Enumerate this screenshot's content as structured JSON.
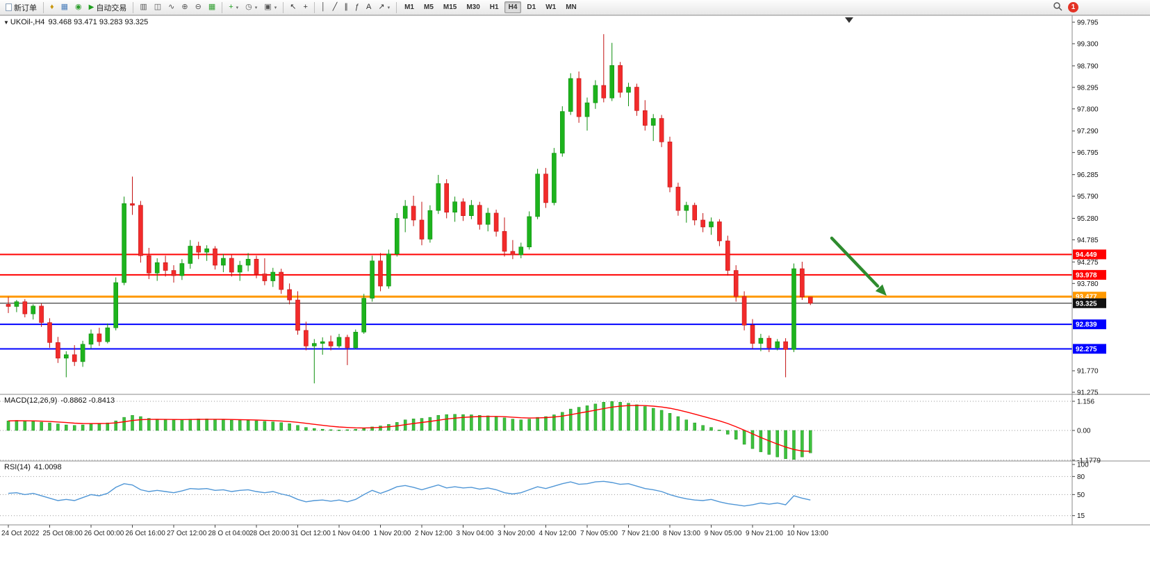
{
  "toolbar": {
    "new_order_label": "新订单",
    "auto_trading_label": "自动交易",
    "dropdown_glyph": "▾",
    "notification_count": "1",
    "timeframes": [
      "M1",
      "M5",
      "M15",
      "M30",
      "H1",
      "H4",
      "D1",
      "W1",
      "MN"
    ],
    "active_timeframe": "H4",
    "groups": {
      "profiles": [
        {
          "name": "market-watch-icon",
          "glyph": "♦",
          "color": "#c8960c"
        },
        {
          "name": "data-window-icon",
          "glyph": "▦",
          "color": "#4a7ebb"
        },
        {
          "name": "navigator-icon",
          "glyph": "◉",
          "color": "#2f9e2f"
        }
      ],
      "chart_types": [
        {
          "name": "bar-chart-icon",
          "glyph": "▥",
          "color": "#555555"
        },
        {
          "name": "candlestick-chart-icon",
          "glyph": "◫",
          "color": "#555555"
        },
        {
          "name": "line-chart-icon",
          "glyph": "∿",
          "color": "#555555"
        }
      ],
      "zoom": [
        {
          "name": "zoom-in-icon",
          "glyph": "⊕",
          "color": "#555555"
        },
        {
          "name": "zoom-out-icon",
          "glyph": "⊖",
          "color": "#555555"
        },
        {
          "name": "tile-windows-icon",
          "glyph": "▦",
          "color": "#2f9e2f"
        }
      ],
      "insert": [
        {
          "name": "indicators-icon",
          "glyph": "+",
          "color": "#1e9e1e",
          "dropdown": true
        },
        {
          "name": "periods-icon",
          "glyph": "◷",
          "color": "#555555",
          "dropdown": true
        },
        {
          "name": "templates-icon",
          "glyph": "▣",
          "color": "#555555",
          "dropdown": true
        }
      ],
      "cursor": [
        {
          "name": "cursor-icon",
          "glyph": "↖",
          "color": "#333333"
        },
        {
          "name": "crosshair-icon",
          "glyph": "+",
          "color": "#333333"
        }
      ],
      "draw": [
        {
          "name": "vertical-line-icon",
          "glyph": "│",
          "color": "#333333"
        },
        {
          "name": "trendline-icon",
          "glyph": "╱",
          "color": "#333333"
        },
        {
          "name": "channel-icon",
          "glyph": "∥",
          "color": "#333333"
        },
        {
          "name": "fibonacci-icon",
          "glyph": "ƒ",
          "color": "#333333"
        },
        {
          "name": "text-icon",
          "glyph": "A",
          "color": "#333333"
        },
        {
          "name": "arrows-icon",
          "glyph": "↗",
          "color": "#333333",
          "dropdown": true
        }
      ]
    }
  },
  "chart": {
    "symbol_title": "UKOil-,H4",
    "ohlc_text": "93.468 93.471 93.283 93.325"
  },
  "chart_data": {
    "type": "candlestick+indicators",
    "symbol": "UKOil-",
    "timeframe": "H4",
    "colors": {
      "bull": "#1db31d",
      "bull_dark": "#0e8f0e",
      "bear": "#f22b2b",
      "bear_dark": "#c31111",
      "macd_hist": "#3ec13e",
      "macd_hist_dark": "#1f8f1f",
      "macd_signal": "#ff0000",
      "rsi_line": "#4f96d6",
      "arrow": "#2e8b2e",
      "line_red": "#ff0000",
      "line_orange": "#ff9900",
      "line_blue": "#0000ff",
      "line_black": "#111111"
    },
    "price_axis": {
      "min": 91.275,
      "max": 99.795,
      "ticks": [
        "99.795",
        "99.300",
        "98.790",
        "98.295",
        "97.800",
        "97.290",
        "96.795",
        "96.285",
        "95.790",
        "95.280",
        "94.785",
        "94.275",
        "93.780",
        "91.770",
        "91.275"
      ]
    },
    "hlines": [
      {
        "price": 94.449,
        "label": "94.449",
        "color": "#ff0000",
        "width": 2
      },
      {
        "price": 93.978,
        "label": "93.978",
        "color": "#ff0000",
        "width": 2
      },
      {
        "price": 93.477,
        "label": "93.477",
        "color": "#ff9900",
        "width": 3
      },
      {
        "price": 93.325,
        "label": "93.325",
        "color": "#111111",
        "width": 1
      },
      {
        "price": 92.839,
        "label": "92.839",
        "color": "#0000ff",
        "width": 2
      },
      {
        "price": 92.275,
        "label": "92.275",
        "color": "#0000ff",
        "width": 2
      }
    ],
    "time_labels": [
      "24 Oct 2022",
      "25 Oct 08:00",
      "26 Oct 00:00",
      "26 Oct 16:00",
      "27 Oct 12:00",
      "28 O ct 04:00",
      "28 Oct 20:00",
      "31 Oct 12:00",
      "1 Nov 04:00",
      "1 Nov 20:00",
      "2 Nov 12:00",
      "3 Nov 04:00",
      "3 Nov 20:00",
      "4 Nov 12:00",
      "7 Nov 05:00",
      "7 Nov 21:00",
      "8 Nov 13:00",
      "9 Nov 05:00",
      "9 Nov 21:00",
      "10 Nov 13:00"
    ],
    "ohlc": [
      [
        93.3,
        93.47,
        93.1,
        93.25
      ],
      [
        93.25,
        93.4,
        93.12,
        93.36
      ],
      [
        93.36,
        93.42,
        93.0,
        93.08
      ],
      [
        93.08,
        93.3,
        92.95,
        93.26
      ],
      [
        93.26,
        93.32,
        92.78,
        92.88
      ],
      [
        92.88,
        92.98,
        92.3,
        92.42
      ],
      [
        92.42,
        92.55,
        91.95,
        92.06
      ],
      [
        92.06,
        92.22,
        91.62,
        92.14
      ],
      [
        92.14,
        92.36,
        91.88,
        91.98
      ],
      [
        91.98,
        92.46,
        91.86,
        92.38
      ],
      [
        92.38,
        92.72,
        92.28,
        92.62
      ],
      [
        92.62,
        92.76,
        92.34,
        92.44
      ],
      [
        92.44,
        92.86,
        92.4,
        92.76
      ],
      [
        92.76,
        93.92,
        92.7,
        93.8
      ],
      [
        93.8,
        95.78,
        93.74,
        95.62
      ],
      [
        95.62,
        96.24,
        95.36,
        95.58
      ],
      [
        95.58,
        95.68,
        94.26,
        94.42
      ],
      [
        94.42,
        94.6,
        93.88,
        94.02
      ],
      [
        94.02,
        94.36,
        93.84,
        94.26
      ],
      [
        94.26,
        94.42,
        93.94,
        94.08
      ],
      [
        94.08,
        94.2,
        93.8,
        93.96
      ],
      [
        93.96,
        94.34,
        93.86,
        94.24
      ],
      [
        94.24,
        94.78,
        94.12,
        94.64
      ],
      [
        94.64,
        94.74,
        94.34,
        94.5
      ],
      [
        94.5,
        94.66,
        94.3,
        94.58
      ],
      [
        94.58,
        94.64,
        94.1,
        94.2
      ],
      [
        94.2,
        94.46,
        94.04,
        94.36
      ],
      [
        94.36,
        94.44,
        93.94,
        94.04
      ],
      [
        94.04,
        94.3,
        93.84,
        94.2
      ],
      [
        94.2,
        94.48,
        94.06,
        94.34
      ],
      [
        94.34,
        94.42,
        93.9,
        94.0
      ],
      [
        94.0,
        94.36,
        93.74,
        93.84
      ],
      [
        93.84,
        94.14,
        93.7,
        94.04
      ],
      [
        94.04,
        94.12,
        93.54,
        93.64
      ],
      [
        93.64,
        93.78,
        93.3,
        93.4
      ],
      [
        93.4,
        93.6,
        92.6,
        92.7
      ],
      [
        92.7,
        92.9,
        92.24,
        92.34
      ],
      [
        92.34,
        92.5,
        91.48,
        92.4
      ],
      [
        92.4,
        92.54,
        92.14,
        92.44
      ],
      [
        92.44,
        92.58,
        92.24,
        92.34
      ],
      [
        92.34,
        92.62,
        92.3,
        92.54
      ],
      [
        92.54,
        92.6,
        91.9,
        92.3
      ],
      [
        92.3,
        92.72,
        92.26,
        92.66
      ],
      [
        92.66,
        93.54,
        92.62,
        93.44
      ],
      [
        93.44,
        94.42,
        93.36,
        94.3
      ],
      [
        94.3,
        94.48,
        93.6,
        93.72
      ],
      [
        93.72,
        94.56,
        93.66,
        94.46
      ],
      [
        94.46,
        95.4,
        94.4,
        95.28
      ],
      [
        95.28,
        95.7,
        94.96,
        95.56
      ],
      [
        95.56,
        95.8,
        95.1,
        95.24
      ],
      [
        95.24,
        95.66,
        94.66,
        94.8
      ],
      [
        94.8,
        95.58,
        94.72,
        95.46
      ],
      [
        95.46,
        96.28,
        95.38,
        96.08
      ],
      [
        96.08,
        96.18,
        95.28,
        95.42
      ],
      [
        95.42,
        95.78,
        95.2,
        95.66
      ],
      [
        95.66,
        95.74,
        95.22,
        95.34
      ],
      [
        95.34,
        95.7,
        95.26,
        95.58
      ],
      [
        95.58,
        95.66,
        95.02,
        95.14
      ],
      [
        95.14,
        95.52,
        94.98,
        95.4
      ],
      [
        95.4,
        95.48,
        94.86,
        94.98
      ],
      [
        94.98,
        95.3,
        94.4,
        94.52
      ],
      [
        94.52,
        94.78,
        94.34,
        94.44
      ],
      [
        94.44,
        94.72,
        94.36,
        94.62
      ],
      [
        94.62,
        95.44,
        94.56,
        95.32
      ],
      [
        95.32,
        96.42,
        95.26,
        96.3
      ],
      [
        96.3,
        96.44,
        95.52,
        95.64
      ],
      [
        95.64,
        96.9,
        95.58,
        96.78
      ],
      [
        96.78,
        97.86,
        96.7,
        97.74
      ],
      [
        97.74,
        98.62,
        97.66,
        98.5
      ],
      [
        98.5,
        98.66,
        97.48,
        97.62
      ],
      [
        97.62,
        98.06,
        97.3,
        97.94
      ],
      [
        97.94,
        98.46,
        97.8,
        98.34
      ],
      [
        98.34,
        99.52,
        97.95,
        98.05
      ],
      [
        98.05,
        99.32,
        97.98,
        98.8
      ],
      [
        98.8,
        98.88,
        98.06,
        98.18
      ],
      [
        98.18,
        98.4,
        97.86,
        98.3
      ],
      [
        98.3,
        98.38,
        97.64,
        97.76
      ],
      [
        97.76,
        98.0,
        97.3,
        97.42
      ],
      [
        97.42,
        97.68,
        97.06,
        97.58
      ],
      [
        97.58,
        97.66,
        96.92,
        97.04
      ],
      [
        97.04,
        97.16,
        95.88,
        96.0
      ],
      [
        96.0,
        96.1,
        95.34,
        95.46
      ],
      [
        95.46,
        95.66,
        95.18,
        95.58
      ],
      [
        95.58,
        95.64,
        95.12,
        95.24
      ],
      [
        95.24,
        95.4,
        94.96,
        95.08
      ],
      [
        95.08,
        95.3,
        94.9,
        95.2
      ],
      [
        95.2,
        95.26,
        94.64,
        94.76
      ],
      [
        94.76,
        94.88,
        93.96,
        94.08
      ],
      [
        94.08,
        94.2,
        93.36,
        93.48
      ],
      [
        93.48,
        93.6,
        92.7,
        92.82
      ],
      [
        92.82,
        92.96,
        92.28,
        92.4
      ],
      [
        92.4,
        92.62,
        92.22,
        92.52
      ],
      [
        92.52,
        92.58,
        92.2,
        92.3
      ],
      [
        92.3,
        92.5,
        92.24,
        92.44
      ],
      [
        92.44,
        92.52,
        91.62,
        92.26
      ],
      [
        92.26,
        94.24,
        92.2,
        94.12
      ],
      [
        94.12,
        94.28,
        93.4,
        93.47
      ],
      [
        93.468,
        93.471,
        93.283,
        93.325
      ]
    ],
    "macd": {
      "label": "MACD(12,26,9)",
      "value_text": "-0.8862 -0.8413",
      "axis_ticks": [
        "1.156",
        "0.00",
        "-1.1779"
      ],
      "axis_values": [
        1.156,
        0,
        -1.1779
      ],
      "values": [
        0.38,
        0.4,
        0.38,
        0.36,
        0.33,
        0.3,
        0.26,
        0.22,
        0.2,
        0.22,
        0.26,
        0.28,
        0.3,
        0.38,
        0.52,
        0.6,
        0.55,
        0.48,
        0.45,
        0.43,
        0.42,
        0.42,
        0.45,
        0.46,
        0.46,
        0.44,
        0.43,
        0.41,
        0.4,
        0.4,
        0.38,
        0.36,
        0.34,
        0.31,
        0.27,
        0.2,
        0.12,
        0.08,
        0.05,
        0.03,
        0.02,
        0.03,
        0.05,
        0.08,
        0.14,
        0.18,
        0.24,
        0.32,
        0.42,
        0.46,
        0.48,
        0.52,
        0.6,
        0.63,
        0.64,
        0.63,
        0.62,
        0.6,
        0.58,
        0.55,
        0.5,
        0.45,
        0.42,
        0.45,
        0.52,
        0.55,
        0.62,
        0.72,
        0.85,
        0.92,
        0.98,
        1.05,
        1.12,
        1.15,
        1.12,
        1.08,
        1.02,
        0.95,
        0.88,
        0.8,
        0.68,
        0.55,
        0.42,
        0.3,
        0.2,
        0.12,
        0.02,
        -0.15,
        -0.35,
        -0.55,
        -0.72,
        -0.85,
        -0.95,
        -1.05,
        -1.12,
        -1.15,
        -1.05,
        -0.89
      ]
    },
    "rsi": {
      "label": "RSI(14)",
      "value_text": "41.0098",
      "levels": [
        80,
        50,
        15
      ],
      "axis_ticks": [
        {
          "v": 100,
          "t": "100"
        },
        {
          "v": 80,
          "t": "80"
        },
        {
          "v": 50,
          "t": "50"
        },
        {
          "v": 15,
          "t": "15"
        }
      ],
      "values": [
        52,
        53,
        50,
        52,
        48,
        44,
        40,
        42,
        40,
        45,
        50,
        48,
        52,
        62,
        68,
        66,
        58,
        55,
        57,
        55,
        53,
        56,
        60,
        59,
        60,
        57,
        58,
        55,
        57,
        58,
        55,
        53,
        55,
        51,
        48,
        42,
        38,
        40,
        41,
        39,
        41,
        38,
        42,
        50,
        57,
        52,
        57,
        63,
        65,
        62,
        58,
        62,
        66,
        61,
        63,
        61,
        62,
        59,
        61,
        58,
        53,
        51,
        53,
        58,
        63,
        60,
        64,
        68,
        71,
        67,
        68,
        71,
        72,
        70,
        67,
        68,
        64,
        60,
        58,
        55,
        50,
        46,
        43,
        41,
        40,
        42,
        38,
        35,
        33,
        31,
        33,
        36,
        34,
        36,
        33,
        48,
        44,
        41
      ]
    },
    "annotations": [
      {
        "type": "arrow",
        "direction": "down-right",
        "color": "#2e8b2e"
      }
    ]
  }
}
